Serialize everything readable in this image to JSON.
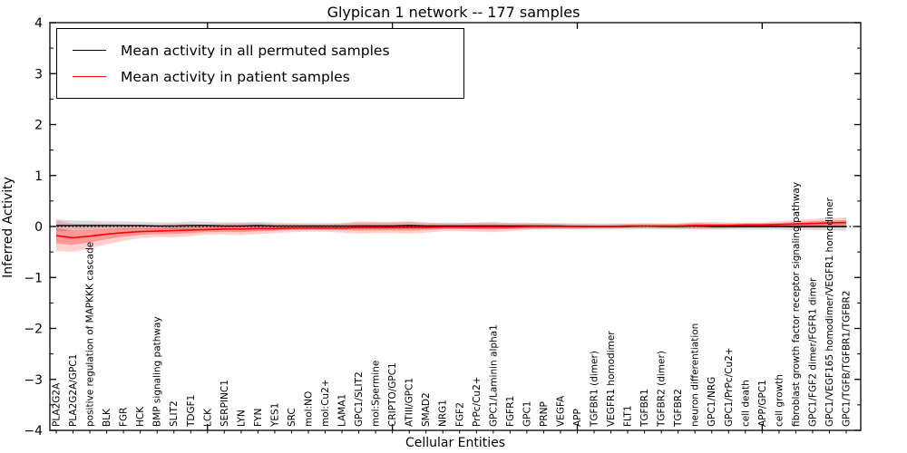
{
  "title": "Glypican 1 network -- 177 samples",
  "xlabel": "Cellular Entities",
  "ylabel": "Inferred Activity",
  "legend": [
    {
      "label": "Mean activity in all permuted samples",
      "color": "#000000"
    },
    {
      "label": "Mean activity in patient samples",
      "color": "#ff0000"
    }
  ],
  "colors": {
    "permuted_line": "#000000",
    "permuted_band": "#b0b0b0",
    "patient_line": "#ff0000",
    "patient_band": "#ff0000",
    "zero_line": "#000000"
  },
  "chart_data": {
    "type": "line",
    "title": "Glypican 1 network -- 177 samples",
    "xlabel": "Cellular Entities",
    "ylabel": "Inferred Activity",
    "ylim": [
      -4,
      4
    ],
    "yticks": [
      -4,
      -3,
      -2,
      -1,
      0,
      1,
      2,
      3,
      4
    ],
    "grid": false,
    "legend_position": "upper left",
    "categories": [
      "PLA2G2A",
      "PLA2G2A/GPC1",
      "positive regulation of MAPKKK cascade",
      "BLK",
      "FGR",
      "HCK",
      "BMP signaling pathway",
      "SLIT2",
      "TDGF1",
      "LCK",
      "SERPINC1",
      "LYN",
      "FYN",
      "YES1",
      "SRC",
      "mol:NO",
      "mol:Cu2+",
      "LAMA1",
      "GPC1/SLIT2",
      "mol:Spermine",
      "CRIPTO/GPC1",
      "ATIII/GPC1",
      "SMAD2",
      "NRG1",
      "FGF2",
      "PrPc/Cu2+",
      "GPC1/Laminin alpha1",
      "FGFR1",
      "GPC1",
      "PRNP",
      "VEGFA",
      "APP",
      "TGFBR1 (dimer)",
      "VEGFR1 homodimer",
      "FLT1",
      "TGFBR1",
      "TGFBR2 (dimer)",
      "TGFBR2",
      "neuron differentiation",
      "GPC1/NRG",
      "GPC1/PrPc/Cu2+",
      "cell death",
      "APP/GPC1",
      "cell growth",
      "fibroblast growth factor receptor signaling pathway",
      "GPC1/FGF2 dimer/FGFR1 dimer",
      "GPC1/VEGF165 homodimer/VEGFR1 homodimer",
      "GPC1/TGFB/TGFBR1/TGFBR2"
    ],
    "series": [
      {
        "name": "Mean activity in all permuted samples",
        "color": "#000000",
        "values": [
          0.02,
          0.02,
          0.02,
          0.02,
          0.02,
          0.02,
          0.01,
          0.01,
          0.02,
          0.02,
          0.01,
          0.01,
          0.02,
          0.01,
          0.01,
          0.01,
          0.01,
          0.01,
          0.01,
          0.01,
          0.01,
          0.02,
          0.01,
          0.01,
          0.01,
          0.01,
          0.01,
          0.01,
          0.01,
          0.01,
          0.01,
          0.0,
          0.0,
          0.0,
          0.0,
          0.01,
          0.0,
          0.0,
          0.01,
          0.0,
          0.0,
          0.0,
          0.0,
          0.0,
          0.0,
          0.0,
          0.0,
          0.0
        ],
        "std": [
          0.12,
          0.1,
          0.09,
          0.08,
          0.08,
          0.07,
          0.07,
          0.07,
          0.08,
          0.07,
          0.07,
          0.07,
          0.07,
          0.07,
          0.06,
          0.06,
          0.06,
          0.06,
          0.07,
          0.07,
          0.07,
          0.07,
          0.06,
          0.06,
          0.06,
          0.06,
          0.06,
          0.06,
          0.06,
          0.06,
          0.06,
          0.06,
          0.06,
          0.06,
          0.06,
          0.06,
          0.06,
          0.06,
          0.06,
          0.06,
          0.06,
          0.06,
          0.06,
          0.06,
          0.07,
          0.07,
          0.08,
          0.08
        ]
      },
      {
        "name": "Mean activity in patient samples",
        "color": "#ff0000",
        "values": [
          -0.18,
          -0.22,
          -0.19,
          -0.15,
          -0.12,
          -0.1,
          -0.09,
          -0.08,
          -0.07,
          -0.06,
          -0.05,
          -0.05,
          -0.04,
          -0.04,
          -0.03,
          -0.03,
          -0.03,
          -0.03,
          -0.02,
          -0.02,
          -0.02,
          -0.02,
          -0.02,
          -0.01,
          -0.01,
          -0.01,
          -0.01,
          -0.01,
          0.0,
          0.0,
          0.0,
          0.0,
          0.0,
          0.0,
          0.01,
          0.01,
          0.01,
          0.01,
          0.02,
          0.02,
          0.02,
          0.03,
          0.03,
          0.04,
          0.05,
          0.06,
          0.07,
          0.08
        ],
        "std": [
          0.3,
          0.28,
          0.24,
          0.2,
          0.16,
          0.13,
          0.12,
          0.13,
          0.12,
          0.1,
          0.11,
          0.12,
          0.11,
          0.09,
          0.08,
          0.07,
          0.07,
          0.09,
          0.12,
          0.11,
          0.11,
          0.12,
          0.1,
          0.08,
          0.08,
          0.09,
          0.1,
          0.08,
          0.07,
          0.06,
          0.05,
          0.05,
          0.04,
          0.04,
          0.04,
          0.04,
          0.04,
          0.05,
          0.07,
          0.07,
          0.06,
          0.05,
          0.05,
          0.06,
          0.08,
          0.09,
          0.09,
          0.1
        ]
      }
    ],
    "zero_reference_line": 0
  }
}
